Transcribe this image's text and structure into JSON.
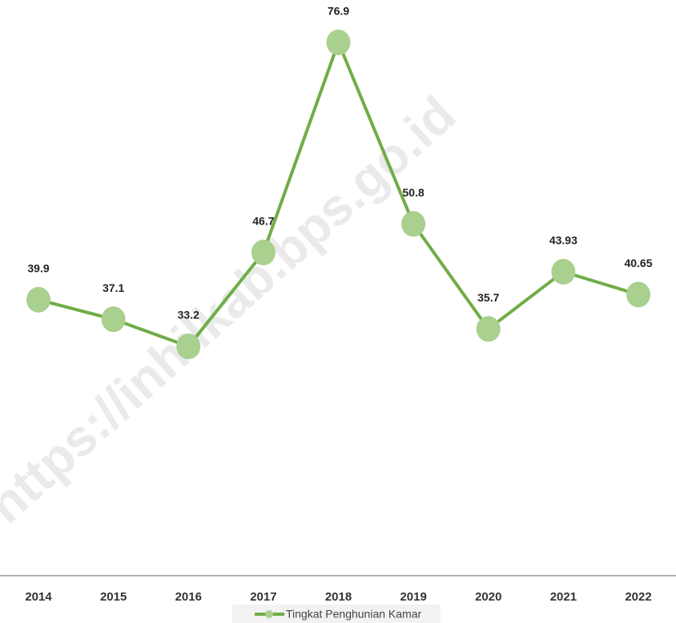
{
  "chart_data": {
    "type": "line",
    "watermark": "https://inhilkab.bps.go.id",
    "categories": [
      "2014",
      "2015",
      "2016",
      "2017",
      "2018",
      "2019",
      "2020",
      "2021",
      "2022"
    ],
    "series": [
      {
        "name": "Tingkat Penghunian Kamar",
        "color": "#70ad47",
        "marker_color": "#a9d08e",
        "values": [
          39.9,
          37.1,
          33.2,
          46.7,
          76.9,
          50.8,
          35.7,
          43.93,
          40.65
        ]
      }
    ],
    "ylim": [
      0,
      80
    ],
    "legend": "bottom"
  }
}
